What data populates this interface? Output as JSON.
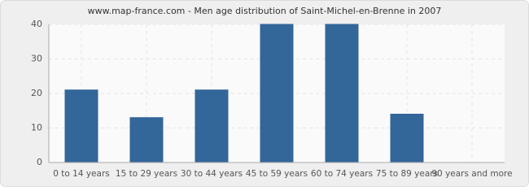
{
  "chart_data": {
    "type": "bar",
    "title": "www.map-france.com - Men age distribution of Saint-Michel-en-Brenne in 2007",
    "categories": [
      "0 to 14 years",
      "15 to 29 years",
      "30 to 44 years",
      "45 to 59 years",
      "60 to 74 years",
      "75 to 89 years",
      "90 years and more"
    ],
    "values": [
      21,
      13,
      21,
      40,
      40,
      14,
      0
    ],
    "color": "#336699",
    "ylim": [
      0,
      40
    ],
    "yticks": [
      0,
      10,
      20,
      30,
      40
    ],
    "grid": true
  }
}
